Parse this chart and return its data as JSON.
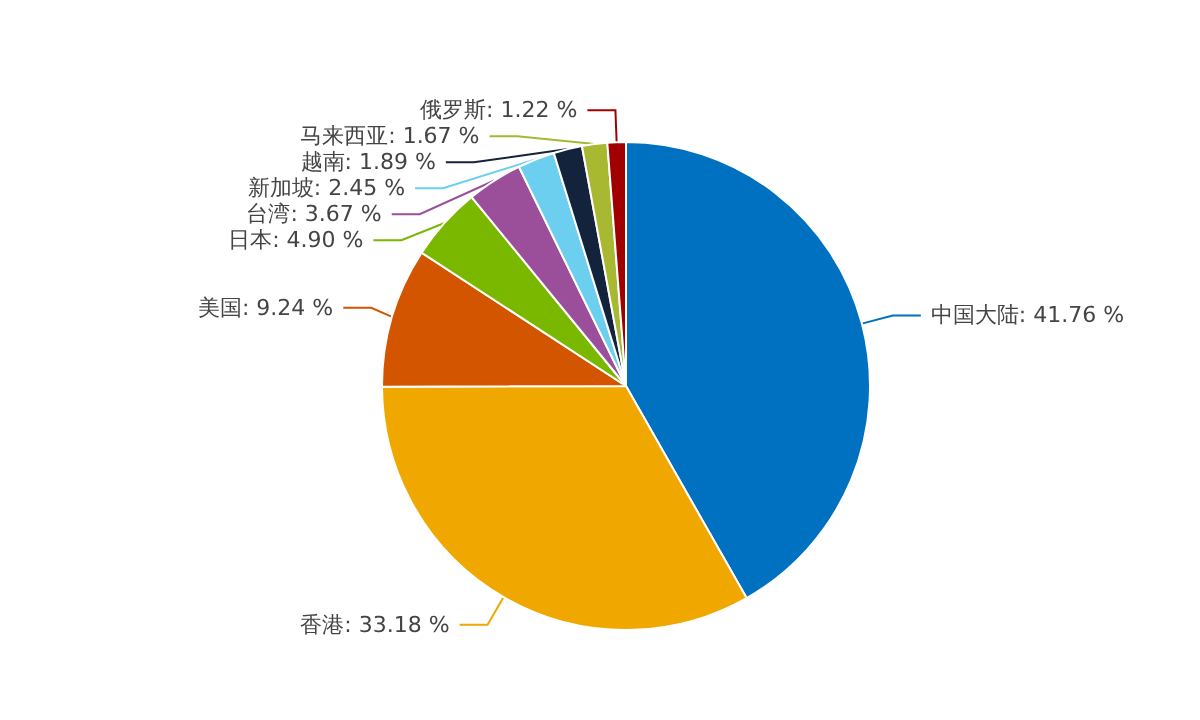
{
  "chart_data": {
    "type": "pie",
    "categories": [
      "中国大陆",
      "香港",
      "美国",
      "日本",
      "台湾",
      "新加坡",
      "越南",
      "马来西亚",
      "俄罗斯"
    ],
    "values": [
      41.76,
      33.18,
      9.24,
      4.9,
      3.67,
      2.45,
      1.89,
      1.67,
      1.22
    ],
    "colors": [
      "#0070c0",
      "#f0a800",
      "#d45500",
      "#7ab800",
      "#9b4f9b",
      "#6ccff0",
      "#14233c",
      "#a8b830",
      "#a00000"
    ],
    "value_labels": [
      ": 41.76 %",
      ": 33.18 %",
      ": 9.24 %",
      ": 4.90 %",
      ": 3.67 %",
      ": 2.45 %",
      ": 1.89 %",
      ": 1.67 %",
      ": 1.22 %"
    ],
    "legend": false
  }
}
